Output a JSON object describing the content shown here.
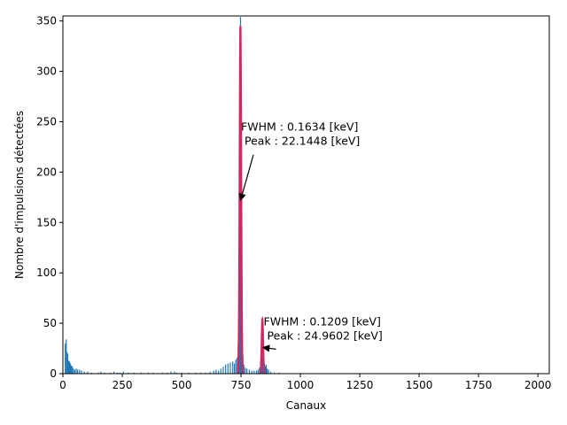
{
  "chart_data": {
    "type": "bar",
    "xlabel": "Canaux",
    "ylabel": "Nombre d'impulsions détectées",
    "xlim": [
      0,
      2048
    ],
    "ylim": [
      0,
      355
    ],
    "xticks": [
      0,
      250,
      500,
      750,
      1000,
      1250,
      1500,
      1750,
      2000
    ],
    "yticks": [
      0,
      50,
      100,
      150,
      200,
      250,
      300,
      350
    ],
    "bar_color": "#1f77b4",
    "fit_color": "#d6275c",
    "histogram": {
      "name": "",
      "channels": [
        [
          10,
          30
        ],
        [
          14,
          34
        ],
        [
          16,
          22
        ],
        [
          20,
          20
        ],
        [
          24,
          13
        ],
        [
          28,
          12
        ],
        [
          32,
          10
        ],
        [
          36,
          8
        ],
        [
          40,
          7
        ],
        [
          44,
          5
        ],
        [
          50,
          4
        ],
        [
          56,
          5
        ],
        [
          62,
          4
        ],
        [
          70,
          4
        ],
        [
          78,
          3
        ],
        [
          90,
          2
        ],
        [
          104,
          2
        ],
        [
          120,
          1
        ],
        [
          150,
          1
        ],
        [
          160,
          2
        ],
        [
          175,
          1
        ],
        [
          200,
          1
        ],
        [
          215,
          2
        ],
        [
          230,
          1
        ],
        [
          240,
          1
        ],
        [
          255,
          2
        ],
        [
          275,
          1
        ],
        [
          300,
          1
        ],
        [
          330,
          1
        ],
        [
          360,
          1
        ],
        [
          380,
          1
        ],
        [
          420,
          1
        ],
        [
          440,
          1
        ],
        [
          455,
          2
        ],
        [
          470,
          2
        ],
        [
          480,
          1
        ],
        [
          500,
          1
        ],
        [
          530,
          1
        ],
        [
          560,
          1
        ],
        [
          580,
          1
        ],
        [
          600,
          1
        ],
        [
          620,
          2
        ],
        [
          635,
          3
        ],
        [
          645,
          4
        ],
        [
          655,
          3
        ],
        [
          665,
          5
        ],
        [
          675,
          7
        ],
        [
          685,
          9
        ],
        [
          695,
          10
        ],
        [
          705,
          11
        ],
        [
          715,
          12
        ],
        [
          722,
          10
        ],
        [
          728,
          14
        ],
        [
          734,
          16
        ],
        [
          738,
          28
        ],
        [
          741,
          60
        ],
        [
          743,
          120
        ],
        [
          745,
          230
        ],
        [
          746,
          300
        ],
        [
          747,
          345
        ],
        [
          748,
          354
        ],
        [
          749,
          320
        ],
        [
          750,
          250
        ],
        [
          752,
          170
        ],
        [
          754,
          90
        ],
        [
          756,
          40
        ],
        [
          758,
          18
        ],
        [
          762,
          9
        ],
        [
          768,
          6
        ],
        [
          775,
          5
        ],
        [
          785,
          4
        ],
        [
          795,
          3
        ],
        [
          805,
          3
        ],
        [
          815,
          3
        ],
        [
          822,
          4
        ],
        [
          828,
          6
        ],
        [
          832,
          12
        ],
        [
          835,
          22
        ],
        [
          838,
          36
        ],
        [
          840,
          46
        ],
        [
          842,
          42
        ],
        [
          844,
          30
        ],
        [
          846,
          18
        ],
        [
          849,
          10
        ],
        [
          852,
          7
        ],
        [
          856,
          9
        ],
        [
          860,
          5
        ],
        [
          866,
          4
        ],
        [
          875,
          2
        ],
        [
          890,
          1
        ],
        [
          910,
          1
        ]
      ]
    },
    "fits": [
      {
        "center": 747.5,
        "sigma": 3.2,
        "amplitude": 345,
        "range": [
          735,
          760
        ]
      },
      {
        "center": 840,
        "sigma": 3.0,
        "amplitude": 54,
        "range": [
          830,
          850
        ]
      }
    ],
    "annotations": [
      {
        "lines": [
          "FWHM : 0.1634 [keV]",
          " Peak : 22.1448 [keV]"
        ],
        "text_xy": [
          750,
          241
        ],
        "arrow_to": [
          748,
          172
        ]
      },
      {
        "lines": [
          "FWHM : 0.1209 [keV]",
          " Peak : 24.9602 [keV]"
        ],
        "text_xy": [
          845,
          48
        ],
        "arrow_to": [
          842,
          26
        ]
      }
    ]
  }
}
